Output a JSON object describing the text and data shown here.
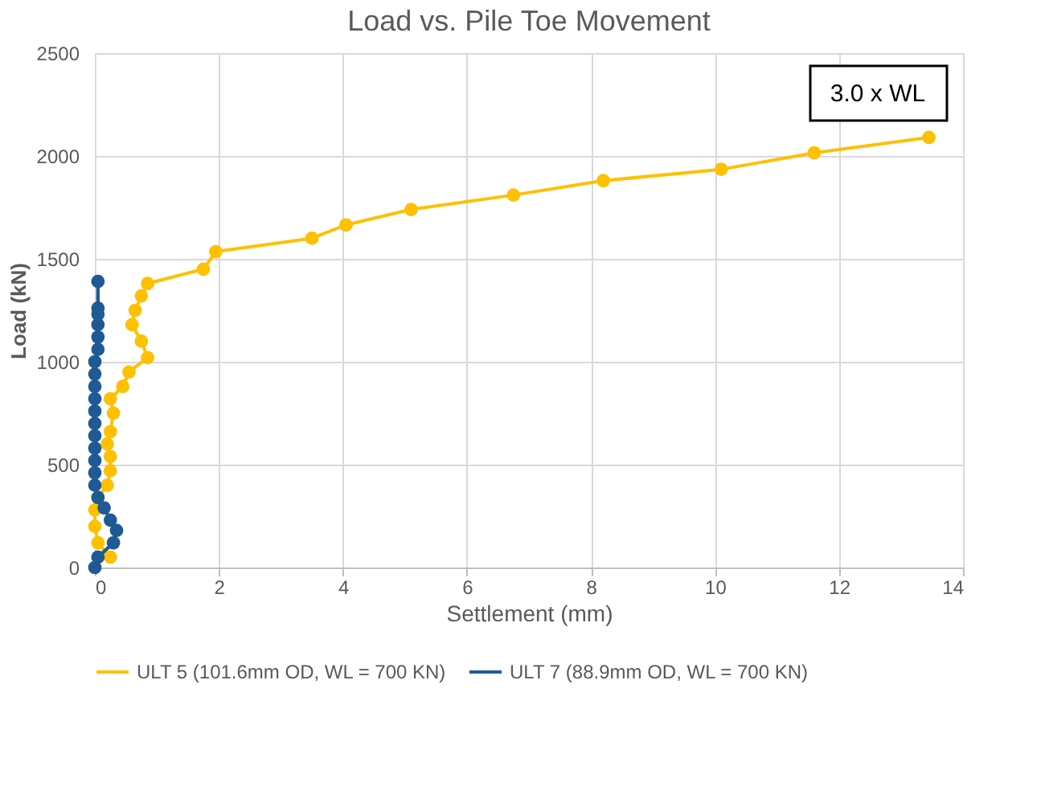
{
  "chart_data": {
    "type": "line",
    "title": "Load vs. Pile Toe Movement",
    "xlabel": "Settlement (mm)",
    "ylabel": "Load (kN)",
    "xlim": [
      0,
      14
    ],
    "xticks": [
      0,
      2,
      4,
      6,
      8,
      10,
      12,
      14
    ],
    "ylim": [
      0,
      2500
    ],
    "yticks": [
      0,
      500,
      1000,
      1500,
      2000,
      2500
    ],
    "grid": true,
    "legend": "bottom",
    "marker": "circle",
    "line_style": "solid",
    "annotations": [
      "3.0 x WL"
    ],
    "series": [
      {
        "name": "ULT 5 (101.6mm OD, WL = 700 KN)",
        "color": "#ffc000",
        "x": [
          0.25,
          0.05,
          0,
          0,
          0.05,
          0.2,
          0.25,
          0.25,
          0.2,
          0.25,
          0.3,
          0.25,
          0.45,
          0.55,
          0.85,
          0.75,
          0.6,
          0.65,
          0.75,
          0.85,
          1.75,
          1.95,
          3.5,
          4.05,
          5.1,
          6.75,
          8.2,
          10.1,
          11.6,
          13.45
        ],
        "values": [
          50,
          120,
          200,
          280,
          340,
          400,
          470,
          540,
          600,
          660,
          750,
          820,
          880,
          950,
          1020,
          1100,
          1180,
          1250,
          1320,
          1380,
          1450,
          1535,
          1600,
          1665,
          1740,
          1810,
          1880,
          1935,
          2015,
          2090
        ]
      },
      {
        "name": "ULT 7 (88.9mm OD, WL = 700 KN)",
        "color": "#1f5a94",
        "x": [
          0,
          0.05,
          0.3,
          0.35,
          0.25,
          0.15,
          0.05,
          0,
          0,
          0,
          0,
          0,
          0,
          0,
          0,
          0,
          0,
          0,
          0.05,
          0.05,
          0.05,
          0.05,
          0.05,
          0.05
        ],
        "values": [
          0,
          50,
          120,
          180,
          230,
          290,
          340,
          400,
          460,
          520,
          580,
          640,
          700,
          760,
          820,
          880,
          940,
          1000,
          1060,
          1120,
          1180,
          1230,
          1260,
          1390
        ]
      }
    ]
  }
}
